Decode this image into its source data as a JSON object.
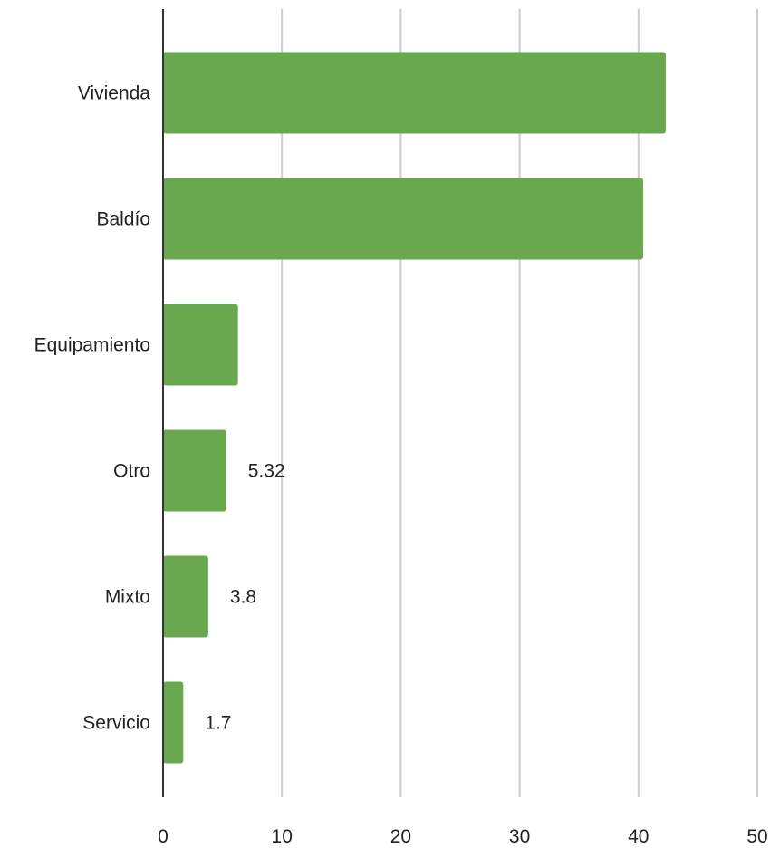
{
  "chart_data": {
    "type": "bar",
    "orientation": "horizontal",
    "title": "",
    "xlabel": "",
    "ylabel": "",
    "categories": [
      "Vivienda",
      "Baldío",
      "Equipamiento",
      "Otro",
      "Mixto",
      "Servicio"
    ],
    "values": [
      42.3,
      40.4,
      6.3,
      5.32,
      3.8,
      1.7
    ],
    "data_labels": [
      "",
      "",
      "",
      "5.32",
      "3.8",
      "1.7"
    ],
    "xlim": [
      0,
      50
    ],
    "xticks": [
      0,
      10,
      20,
      30,
      40,
      50
    ],
    "grid": "vertical",
    "legend": "none",
    "bar_color": "#6aa84f",
    "grid_color": "#cccccc",
    "axis_color": "#333333"
  }
}
